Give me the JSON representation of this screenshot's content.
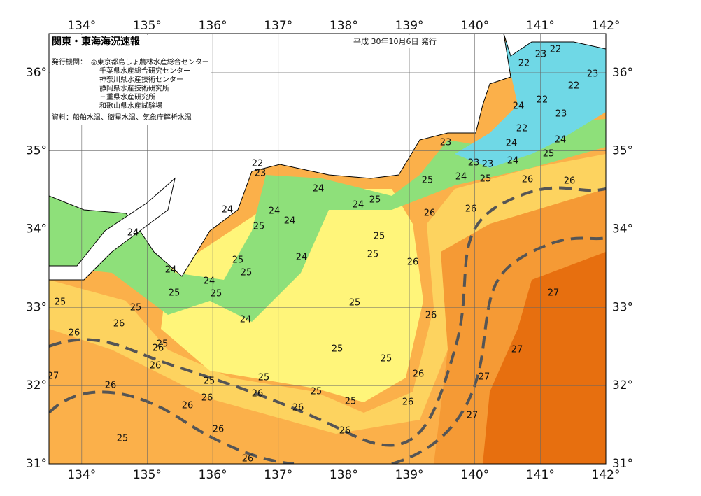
{
  "header": {
    "title": "関東・東海海況速報",
    "issued": "平成 30年10月6日 発行",
    "issuers_label": "発行機関：",
    "issuers": [
      "◎東京都島しょ農林水産総合センター",
      "千葉県水産総合研究センター",
      "神奈川県水産技術センター",
      "静岡県水産技術研究所",
      "三重県水産研究所",
      "和歌山県水産試験場"
    ],
    "source": "資料：船舶水温、衛星水温、気象庁解析水温"
  },
  "map": {
    "type": "sea-surface-temperature",
    "lonlim": [
      133.5,
      142
    ],
    "latlim": [
      31,
      36.5
    ],
    "grid": true,
    "lon_ticks": [
      {
        "value": 134,
        "label": "134°"
      },
      {
        "value": 135,
        "label": "135°"
      },
      {
        "value": 136,
        "label": "136°"
      },
      {
        "value": 137,
        "label": "137°"
      },
      {
        "value": 138,
        "label": "138°"
      },
      {
        "value": 139,
        "label": "139°"
      },
      {
        "value": 140,
        "label": "140°"
      },
      {
        "value": 141,
        "label": "141°"
      },
      {
        "value": 142,
        "label": "142°"
      }
    ],
    "lat_ticks": [
      {
        "value": 31,
        "label": "31°"
      },
      {
        "value": 32,
        "label": "32°"
      },
      {
        "value": 33,
        "label": "33°"
      },
      {
        "value": 34,
        "label": "34°"
      },
      {
        "value": 35,
        "label": "35°"
      },
      {
        "value": 36,
        "label": "36°"
      }
    ],
    "isotherm_labels": [
      22,
      23,
      22,
      23,
      22,
      22,
      24,
      23,
      22,
      24,
      24,
      23,
      25,
      23,
      23,
      24,
      24,
      25,
      26,
      26,
      25,
      22,
      23,
      24,
      25,
      24,
      24,
      24,
      26,
      26,
      24,
      25,
      24,
      25,
      25,
      24,
      25,
      26,
      25,
      24,
      24,
      25,
      25,
      27,
      25,
      25,
      25,
      24,
      26,
      26,
      26,
      25,
      26,
      27,
      25,
      25,
      26,
      27,
      26,
      27,
      25,
      25,
      26,
      25,
      26,
      26,
      25,
      26,
      26,
      26,
      27,
      26,
      26,
      25,
      26
    ]
  }
}
